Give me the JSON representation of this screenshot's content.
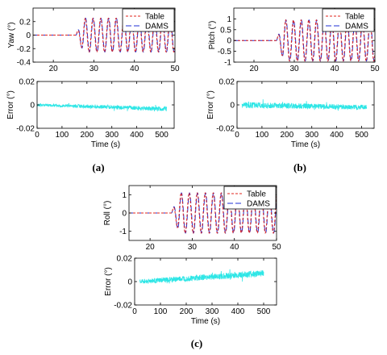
{
  "colors": {
    "table": "#e0241e",
    "dams": "#1f2fd6",
    "error": "#2ee6e6",
    "axis": "#000000"
  },
  "chart_data": [
    {
      "id": "a-top",
      "type": "line",
      "ylabel": "Yaw (°)",
      "xlim": [
        15,
        50
      ],
      "ylim": [
        -0.4,
        0.4
      ],
      "xticks": [
        20,
        30,
        40,
        50
      ],
      "yticks": [
        -0.4,
        -0.2,
        0,
        0.2
      ],
      "xtick_labels": [
        "20",
        "30",
        "40",
        "50"
      ],
      "ytick_labels": [
        "-0.4",
        "-0.2",
        "0",
        "0.2"
      ],
      "signal": {
        "onset": 25.5,
        "ramp": 2.0,
        "period": 1.9,
        "amplitude": 0.25
      },
      "series": [
        {
          "name": "Table"
        },
        {
          "name": "DAMS"
        }
      ],
      "legend": "top-right"
    },
    {
      "id": "a-bottom",
      "type": "line",
      "ylabel": "Error (°)",
      "xlabel": "Time (s)",
      "xlim": [
        0,
        550
      ],
      "ylim": [
        -0.02,
        0.02
      ],
      "xticks": [
        0,
        100,
        200,
        300,
        400,
        500
      ],
      "yticks": [
        -0.02,
        0,
        0.02
      ],
      "xtick_labels": [
        "0",
        "100",
        "200",
        "300",
        "400",
        "500"
      ],
      "ytick_labels": [
        "-0.02",
        "0",
        "0.02"
      ],
      "band": {
        "start": 0,
        "end": 520,
        "center_start": 0.0,
        "center_end": -0.0035,
        "half_width_start": 0.0012,
        "half_width_end": 0.002
      }
    },
    {
      "id": "b-top",
      "type": "line",
      "ylabel": "Pitch (°)",
      "xlim": [
        15,
        50
      ],
      "ylim": [
        -1,
        1.5
      ],
      "xticks": [
        20,
        30,
        40,
        50
      ],
      "yticks": [
        -1,
        -0.5,
        0,
        0.5,
        1
      ],
      "xtick_labels": [
        "20",
        "30",
        "40",
        "50"
      ],
      "ytick_labels": [
        "-1",
        "-0.5",
        "0",
        "0.5",
        "1"
      ],
      "signal": {
        "onset": 25.5,
        "ramp": 2.0,
        "period": 1.9,
        "amplitude": 0.95
      },
      "series": [
        {
          "name": "Table"
        },
        {
          "name": "DAMS"
        }
      ],
      "legend": "top-right"
    },
    {
      "id": "b-bottom",
      "type": "line",
      "ylabel": "Error (°)",
      "xlabel": "Time (s)",
      "xlim": [
        0,
        550
      ],
      "ylim": [
        -0.02,
        0.02
      ],
      "xticks": [
        0,
        100,
        200,
        300,
        400,
        500
      ],
      "yticks": [
        -0.02,
        0,
        0.02
      ],
      "xtick_labels": [
        "0",
        "100",
        "200",
        "300",
        "400",
        "500"
      ],
      "ytick_labels": [
        "-0.02",
        "0",
        "0.02"
      ],
      "band": {
        "start": 20,
        "end": 520,
        "center_start": 0.0,
        "center_end": -0.002,
        "half_width_start": 0.0025,
        "half_width_end": 0.002
      }
    },
    {
      "id": "c-top",
      "type": "line",
      "ylabel": "Roll (°)",
      "xlim": [
        15,
        50
      ],
      "ylim": [
        -1.5,
        1.5
      ],
      "xticks": [
        20,
        30,
        40,
        50
      ],
      "yticks": [
        -1,
        0,
        1
      ],
      "xtick_labels": [
        "20",
        "30",
        "40",
        "50"
      ],
      "ytick_labels": [
        "-1",
        "0",
        "1"
      ],
      "signal": {
        "onset": 25.0,
        "ramp": 2.0,
        "period": 1.9,
        "amplitude": 1.1
      },
      "series": [
        {
          "name": "Table"
        },
        {
          "name": "DAMS"
        }
      ],
      "legend": "top-right"
    },
    {
      "id": "c-bottom",
      "type": "line",
      "ylabel": "Error (°)",
      "xlabel": "Time (s)",
      "xlim": [
        0,
        550
      ],
      "ylim": [
        -0.02,
        0.02
      ],
      "xticks": [
        0,
        100,
        200,
        300,
        400,
        500
      ],
      "yticks": [
        -0.02,
        0,
        0.02
      ],
      "xtick_labels": [
        "0",
        "100",
        "200",
        "300",
        "400",
        "500"
      ],
      "ytick_labels": [
        "-0.02",
        "0",
        "0.02"
      ],
      "band": {
        "start": 20,
        "end": 500,
        "center_start": 0.0,
        "center_end": 0.007,
        "half_width_start": 0.002,
        "half_width_end": 0.003
      }
    }
  ],
  "captions": {
    "a": "(a)",
    "b": "(b)",
    "c": "(c)"
  }
}
